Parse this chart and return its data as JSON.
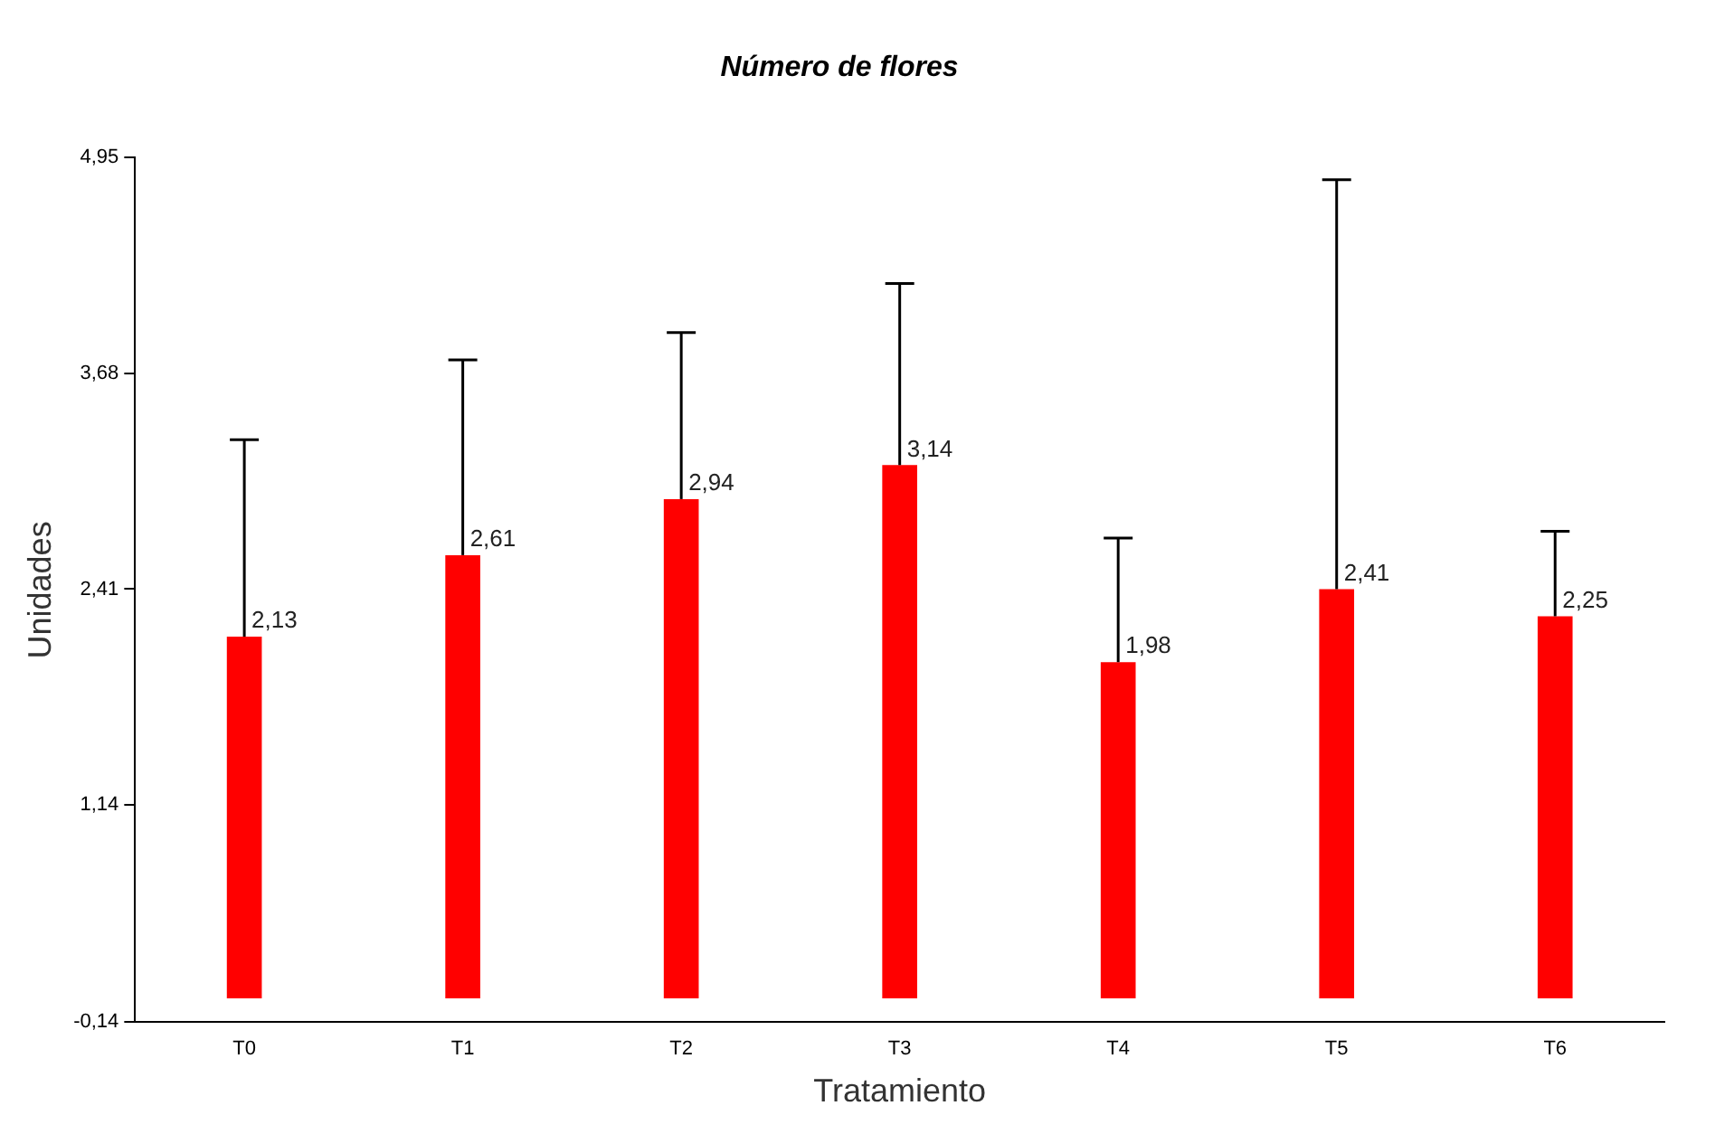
{
  "chart_data": {
    "type": "bar",
    "title": "Número de flores",
    "xlabel": "Tratamiento",
    "ylabel": "Unidades",
    "categories": [
      "T0",
      "T1",
      "T2",
      "T3",
      "T4",
      "T5",
      "T6"
    ],
    "series": [
      {
        "color": "#ff0000",
        "values": [
          2.13,
          2.61,
          2.94,
          3.14,
          1.98,
          2.41,
          2.25
        ],
        "value_labels": [
          "2,13",
          "2,61",
          "2,94",
          "3,14",
          "1,98",
          "2,41",
          "2,25"
        ],
        "errors": [
          [
            2.13,
            3.29
          ],
          [
            2.61,
            3.76
          ],
          [
            2.94,
            3.92
          ],
          [
            3.14,
            4.21
          ],
          [
            1.98,
            2.71
          ],
          [
            2.41,
            4.82
          ],
          [
            2.25,
            2.75
          ]
        ]
      }
    ],
    "ylim": [
      -0.14,
      4.95
    ],
    "yticks": [
      {
        "value": -0.14,
        "label": "-0,14"
      },
      {
        "value": 1.14,
        "label": "1,14"
      },
      {
        "value": 2.41,
        "label": "2,41"
      },
      {
        "value": 3.68,
        "label": "3,68"
      },
      {
        "value": 4.95,
        "label": "4,95"
      }
    ],
    "grid": false,
    "legend": false
  }
}
